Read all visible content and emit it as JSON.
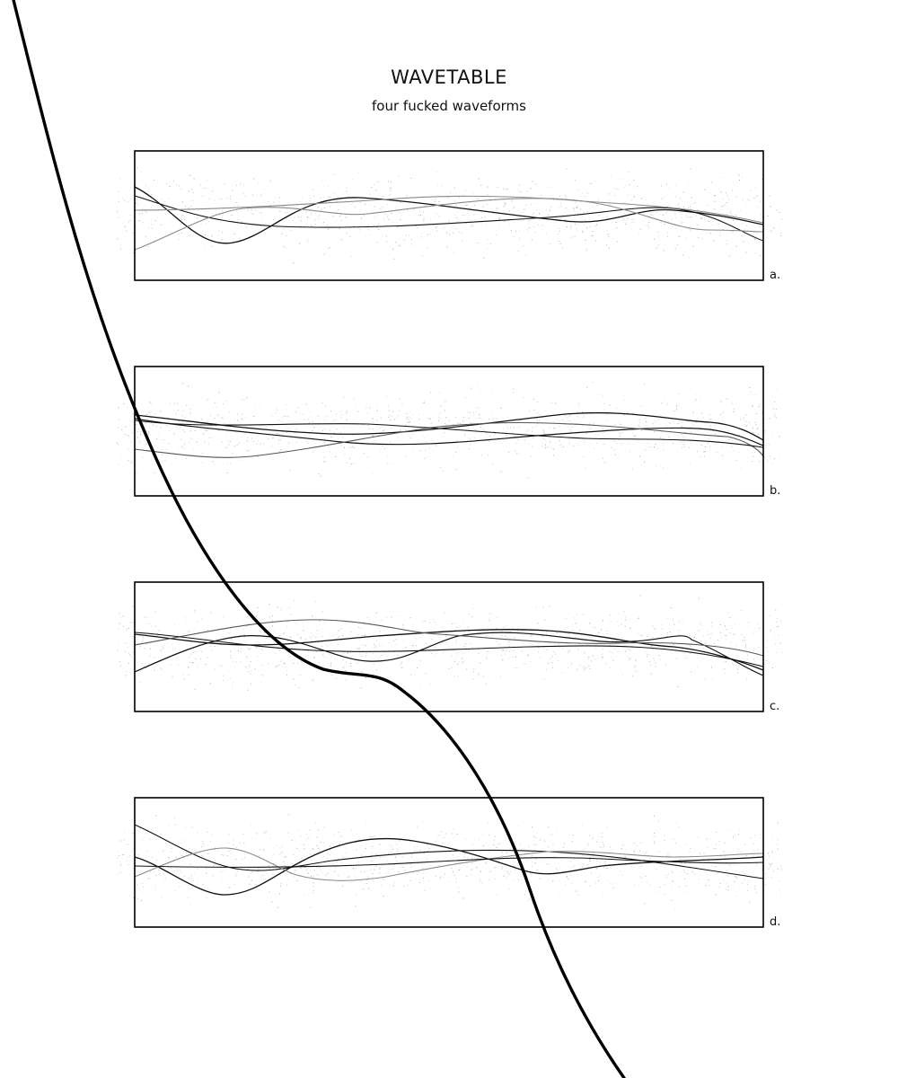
{
  "header": {
    "title": "WAVETABLE",
    "subtitle": "four fucked waveforms"
  },
  "panels": [
    {
      "label": "a."
    },
    {
      "label": "b."
    },
    {
      "label": "c."
    },
    {
      "label": "d."
    }
  ],
  "colors": {
    "background": "#ffffff",
    "ink": "#111111",
    "grey_line": "#8a8a8a",
    "speckle": "#9a9a9a"
  }
}
